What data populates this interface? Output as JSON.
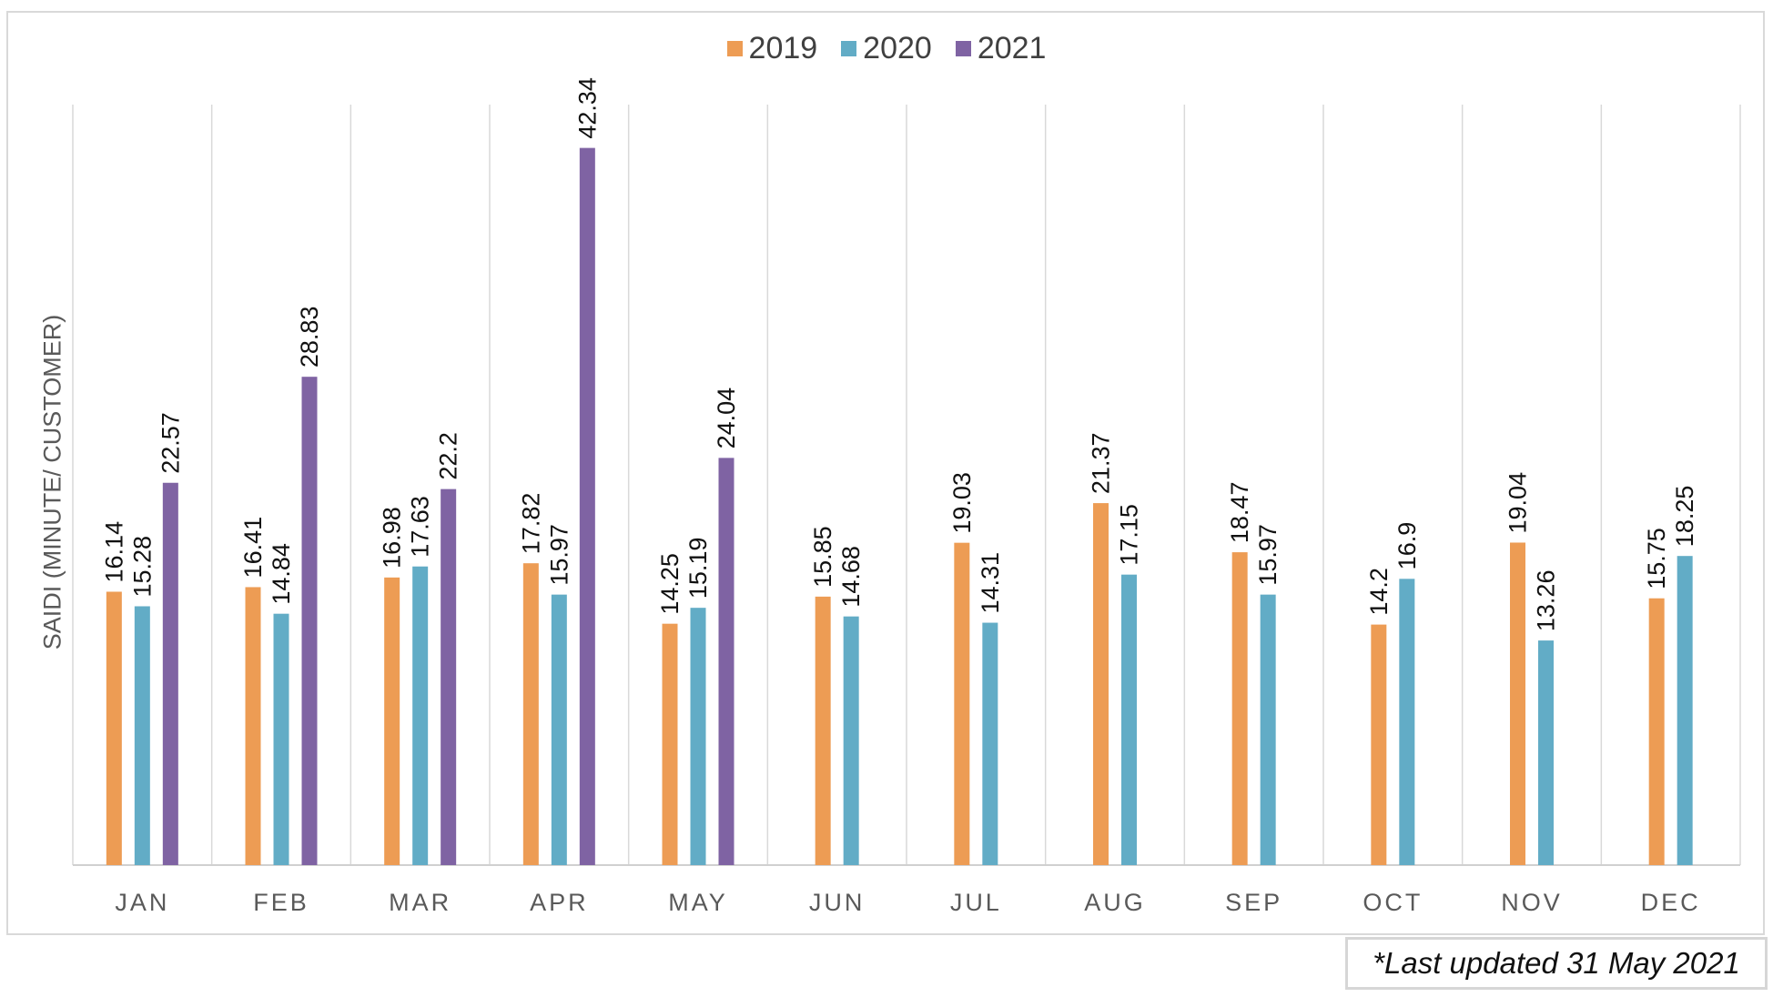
{
  "chart_data": {
    "type": "bar",
    "title": "",
    "xlabel": "",
    "ylabel": "SAIDI (MINUTE/ CUSTOMER)",
    "ylim": [
      0,
      46
    ],
    "grid": "vertical category separators",
    "legend_position": "top-center",
    "categories": [
      "JAN",
      "FEB",
      "MAR",
      "APR",
      "MAY",
      "JUN",
      "JUL",
      "AUG",
      "SEP",
      "OCT",
      "NOV",
      "DEC"
    ],
    "series": [
      {
        "name": "2019",
        "color": "#ed9c54",
        "values": [
          16.14,
          16.41,
          16.98,
          17.82,
          14.25,
          15.85,
          19.03,
          21.37,
          18.47,
          14.2,
          19.04,
          15.75
        ]
      },
      {
        "name": "2020",
        "color": "#62acc6",
        "values": [
          15.28,
          14.84,
          17.63,
          15.97,
          15.19,
          14.68,
          14.31,
          17.15,
          15.97,
          16.9,
          13.26,
          18.25
        ]
      },
      {
        "name": "2021",
        "color": "#7f63a3",
        "values": [
          22.57,
          28.83,
          22.2,
          42.34,
          24.04,
          null,
          null,
          null,
          null,
          null,
          null,
          null
        ]
      }
    ]
  },
  "footnote": "*Last updated 31 May 2021"
}
